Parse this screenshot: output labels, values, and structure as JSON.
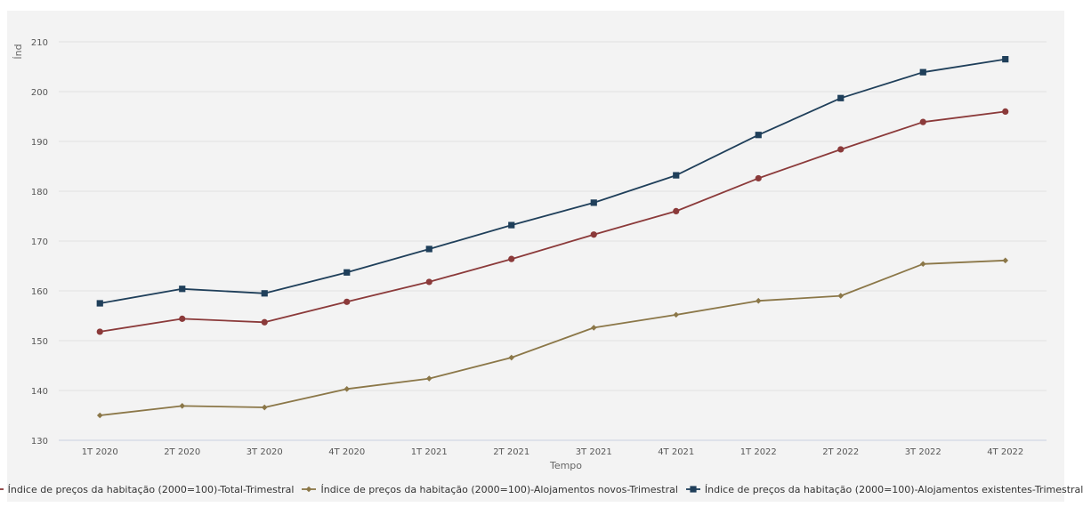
{
  "chart_data": {
    "type": "line",
    "title": "",
    "xlabel": "Tempo",
    "ylabel": "Índ",
    "ylim": [
      130,
      210
    ],
    "yticks": [
      130,
      140,
      150,
      160,
      170,
      180,
      190,
      200,
      210
    ],
    "grid": true,
    "legend_position": "bottom",
    "categories": [
      "1T 2020",
      "2T 2020",
      "3T 2020",
      "4T 2020",
      "1T 2021",
      "2T 2021",
      "3T 2021",
      "4T 2021",
      "1T 2022",
      "2T 2022",
      "3T 2022",
      "4T 2022"
    ],
    "series": [
      {
        "name": "Índice de preços da habitação (2000=100)-Total-Trimestral",
        "color": "#8b3a3a",
        "marker": "circle",
        "values": [
          151.8,
          154.4,
          153.7,
          157.8,
          161.8,
          166.4,
          171.3,
          176.0,
          182.6,
          188.4,
          193.9,
          196.0
        ]
      },
      {
        "name": "Índice de preços da habitação (2000=100)-Alojamentos novos-Trimestral",
        "color": "#8b7748",
        "marker": "diamond",
        "values": [
          135.0,
          136.9,
          136.6,
          140.3,
          142.4,
          146.6,
          152.6,
          155.2,
          158.0,
          159.0,
          165.4,
          166.1
        ]
      },
      {
        "name": "Índice de preços da habitação (2000=100)-Alojamentos existentes-Trimestral",
        "color": "#1f3f5a",
        "marker": "square",
        "values": [
          157.5,
          160.4,
          159.5,
          163.7,
          168.4,
          173.2,
          177.7,
          183.2,
          191.3,
          198.7,
          203.9,
          206.5
        ]
      }
    ]
  }
}
